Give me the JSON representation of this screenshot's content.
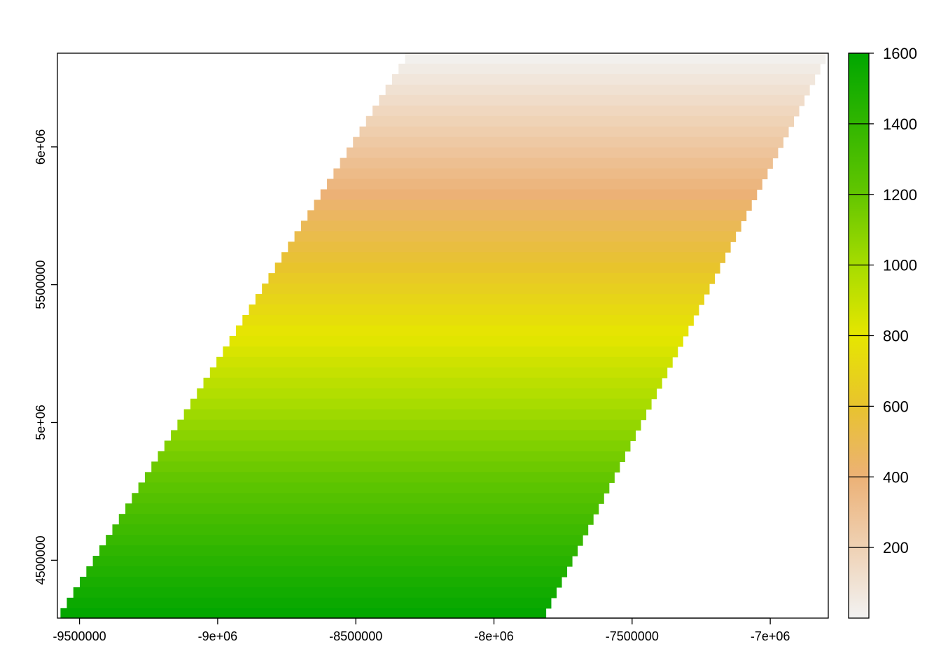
{
  "chart_data": {
    "type": "heatmap",
    "title": "",
    "xlabel": "",
    "ylabel": "",
    "xlim": [
      -9580000,
      -6790000
    ],
    "ylim": [
      4290000,
      6340000
    ],
    "x_ticks": [
      {
        "value": -9500000,
        "label": "-9500000"
      },
      {
        "value": -9000000,
        "label": "-9e+06"
      },
      {
        "value": -8500000,
        "label": "-8500000"
      },
      {
        "value": -8000000,
        "label": "-8e+06"
      },
      {
        "value": -7500000,
        "label": "-7500000"
      },
      {
        "value": -7000000,
        "label": "-7e+06"
      }
    ],
    "y_ticks": [
      {
        "value": 4500000,
        "label": "4500000"
      },
      {
        "value": 5000000,
        "label": "5e+06"
      },
      {
        "value": 5500000,
        "label": "5500000"
      },
      {
        "value": 6000000,
        "label": "6e+06"
      }
    ],
    "colorbar": {
      "range": [
        0,
        1600
      ],
      "ticks": [
        {
          "value": 200,
          "label": "200"
        },
        {
          "value": 400,
          "label": "400"
        },
        {
          "value": 600,
          "label": "600"
        },
        {
          "value": 800,
          "label": "800"
        },
        {
          "value": 1000,
          "label": "1000"
        },
        {
          "value": 1200,
          "label": "1200"
        },
        {
          "value": 1400,
          "label": "1400"
        },
        {
          "value": 1600,
          "label": "1600"
        }
      ],
      "color_stops": [
        {
          "value": 0,
          "color": "#F2F2F2"
        },
        {
          "value": 400,
          "color": "#ECB176"
        },
        {
          "value": 600,
          "color": "#E8C32E"
        },
        {
          "value": 800,
          "color": "#E6E600"
        },
        {
          "value": 1000,
          "color": "#A6DC00"
        },
        {
          "value": 1200,
          "color": "#63C600"
        },
        {
          "value": 1600,
          "color": "#00A600"
        }
      ]
    },
    "raster": {
      "row_height": 38000,
      "y_top": 6340000,
      "y_bottom": 4290000,
      "value_at_top": 0,
      "value_at_bottom": 1600,
      "left_edge": [
        [
          6340000,
          -8310000
        ],
        [
          4290000,
          -9580000
        ]
      ],
      "right_edge": [
        [
          6340000,
          -6790000
        ],
        [
          4290000,
          -7820000
        ]
      ]
    }
  }
}
